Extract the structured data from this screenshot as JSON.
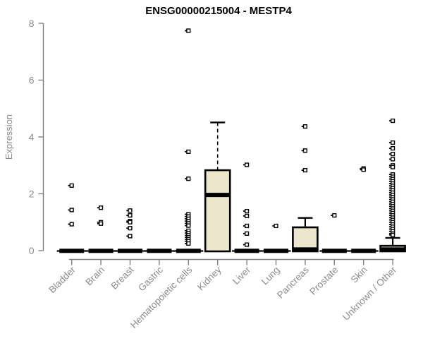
{
  "chart_data": {
    "type": "boxplot",
    "title": "ENSG00000215004 - MESTP4",
    "ylabel": "Expression",
    "xlabel": "",
    "ylim": [
      0,
      8
    ],
    "yticks": [
      0,
      2,
      4,
      6,
      8
    ],
    "grid": false,
    "legend": "none",
    "colors": {
      "box_fill": "#ece6cd",
      "box_border": "#000000",
      "median": "#000000",
      "outlier_stroke": "#000000",
      "outlier_fill": "#ffffff",
      "axis_line": "#7f7f7f",
      "tick_label": "#8c8c8c",
      "title": "#000000"
    },
    "categories": [
      "Bladder",
      "Brain",
      "Breast",
      "Gastric",
      "Hematopoietic cells",
      "Kidney",
      "Liver",
      "Lung",
      "Pancreas",
      "Prostate",
      "Skin",
      "Unknown / Other"
    ],
    "series": [
      {
        "label": "Bladder",
        "collapsed": true,
        "box": {
          "q1": 0,
          "median": 0,
          "q3": 0,
          "whisker_high": 0
        },
        "outliers": [
          2.29,
          1.43,
          0.93
        ]
      },
      {
        "label": "Brain",
        "collapsed": true,
        "box": {
          "q1": 0,
          "median": 0,
          "q3": 0,
          "whisker_high": 0
        },
        "outliers": [
          1.51,
          1.0,
          0.95
        ]
      },
      {
        "label": "Breast",
        "collapsed": true,
        "box": {
          "q1": 0,
          "median": 0,
          "q3": 0,
          "whisker_high": 0
        },
        "outliers": [
          1.41,
          1.24,
          1.04,
          1.0,
          0.79,
          0.51
        ]
      },
      {
        "label": "Gastric",
        "collapsed": true,
        "box": {
          "q1": 0,
          "median": 0,
          "q3": 0,
          "whisker_high": 0
        },
        "outliers": []
      },
      {
        "label": "Hematopoietic cells",
        "collapsed": true,
        "box": {
          "q1": 0,
          "median": 0,
          "q3": 0,
          "whisker_high": 0
        },
        "outliers": [
          7.74,
          3.48,
          2.53,
          1.28,
          1.2,
          1.12,
          1.04,
          0.96,
          0.88,
          0.7,
          0.62,
          0.54,
          0.47,
          0.4,
          0.33,
          0.25
        ]
      },
      {
        "label": "Kidney",
        "collapsed": false,
        "box": {
          "q1": 0,
          "median": 1.96,
          "q3": 2.83,
          "whisker_high": 4.51
        },
        "outliers": []
      },
      {
        "label": "Liver",
        "collapsed": true,
        "box": {
          "q1": 0,
          "median": 0,
          "q3": 0,
          "whisker_high": 0
        },
        "outliers": [
          3.02,
          1.39,
          1.22,
          0.87,
          0.6,
          0.21
        ]
      },
      {
        "label": "Lung",
        "collapsed": true,
        "box": {
          "q1": 0,
          "median": 0,
          "q3": 0,
          "whisker_high": 0
        },
        "outliers": [
          0.87
        ]
      },
      {
        "label": "Pancreas",
        "collapsed": false,
        "box": {
          "q1": 0,
          "median": 0.04,
          "q3": 0.82,
          "whisker_high": 1.15
        },
        "outliers": [
          4.37,
          3.52,
          2.83
        ]
      },
      {
        "label": "Prostate",
        "collapsed": true,
        "box": {
          "q1": 0,
          "median": 0,
          "q3": 0,
          "whisker_high": 0
        },
        "outliers": [
          1.24
        ]
      },
      {
        "label": "Skin",
        "collapsed": true,
        "box": {
          "q1": 0,
          "median": 0,
          "q3": 0,
          "whisker_high": 0
        },
        "outliers": [
          2.89,
          2.85
        ]
      },
      {
        "label": "Unknown / Other",
        "collapsed": false,
        "box": {
          "q1": 0,
          "median": 0.04,
          "q3": 0.17,
          "whisker_high": 0.45
        },
        "outliers": [
          4.57,
          3.8,
          3.6,
          3.4,
          3.22,
          3.0,
          2.94,
          2.68,
          2.6,
          2.52,
          2.44,
          2.36,
          2.28,
          2.2,
          2.12,
          2.04,
          1.96,
          1.88,
          1.8,
          1.72,
          1.64,
          1.56,
          1.48,
          1.4,
          1.32,
          1.24,
          1.16,
          1.08,
          1.0,
          0.92,
          0.84,
          0.76,
          0.68,
          0.6,
          0.55
        ]
      }
    ]
  }
}
